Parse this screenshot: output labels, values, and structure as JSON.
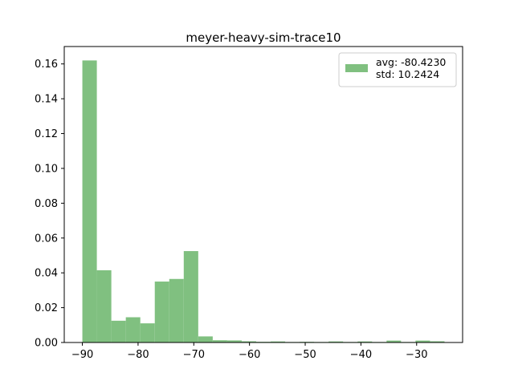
{
  "chart_data": {
    "type": "bar",
    "title": "meyer-heavy-sim-trace10",
    "xlabel": "",
    "ylabel": "",
    "bar_color": "#80c080",
    "bins": [
      {
        "x0": -90.0,
        "x1": -87.4,
        "value": 0.162
      },
      {
        "x0": -87.4,
        "x1": -84.8,
        "value": 0.0415
      },
      {
        "x0": -84.8,
        "x1": -82.2,
        "value": 0.0125
      },
      {
        "x0": -82.2,
        "x1": -79.6,
        "value": 0.0145
      },
      {
        "x0": -79.6,
        "x1": -77.0,
        "value": 0.011
      },
      {
        "x0": -77.0,
        "x1": -74.4,
        "value": 0.035
      },
      {
        "x0": -74.4,
        "x1": -71.8,
        "value": 0.0365
      },
      {
        "x0": -71.8,
        "x1": -69.2,
        "value": 0.0525
      },
      {
        "x0": -69.2,
        "x1": -66.6,
        "value": 0.0035
      },
      {
        "x0": -66.6,
        "x1": -64.0,
        "value": 0.0013
      },
      {
        "x0": -64.0,
        "x1": -61.4,
        "value": 0.0012
      },
      {
        "x0": -61.4,
        "x1": -58.8,
        "value": 0.0007
      },
      {
        "x0": -58.8,
        "x1": -56.2,
        "value": 0.0004
      },
      {
        "x0": -56.2,
        "x1": -53.6,
        "value": 0.0006
      },
      {
        "x0": -53.6,
        "x1": -51.0,
        "value": 0.0003
      },
      {
        "x0": -51.0,
        "x1": -48.4,
        "value": 0.0004
      },
      {
        "x0": -48.4,
        "x1": -45.8,
        "value": 0.0003
      },
      {
        "x0": -45.8,
        "x1": -43.2,
        "value": 0.0006
      },
      {
        "x0": -43.2,
        "x1": -40.6,
        "value": 0.0003
      },
      {
        "x0": -40.6,
        "x1": -38.0,
        "value": 0.0006
      },
      {
        "x0": -38.0,
        "x1": -35.4,
        "value": 0.0003
      },
      {
        "x0": -35.4,
        "x1": -32.8,
        "value": 0.0011
      },
      {
        "x0": -32.8,
        "x1": -30.2,
        "value": 0.0003
      },
      {
        "x0": -30.2,
        "x1": -27.6,
        "value": 0.0011
      },
      {
        "x0": -27.6,
        "x1": -25.0,
        "value": 0.0007
      }
    ],
    "xlim": [
      -93.25,
      -21.75
    ],
    "ylim": [
      0,
      0.17
    ],
    "x_ticks": [
      -90,
      -80,
      -70,
      -60,
      -50,
      -40,
      -30
    ],
    "x_tick_labels": [
      "−90",
      "−80",
      "−70",
      "−60",
      "−50",
      "−40",
      "−30"
    ],
    "y_ticks": [
      0.0,
      0.02,
      0.04,
      0.06,
      0.08,
      0.1,
      0.12,
      0.14,
      0.16
    ],
    "y_tick_labels": [
      "0.00",
      "0.02",
      "0.04",
      "0.06",
      "0.08",
      "0.10",
      "0.12",
      "0.14",
      "0.16"
    ],
    "grid": false,
    "legend": {
      "placement": "top-right",
      "lines": [
        "avg: -80.4230",
        "std: 10.2424"
      ]
    }
  }
}
